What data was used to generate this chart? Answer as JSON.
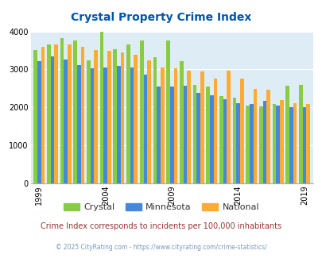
{
  "title": "Crystal Property Crime Index",
  "title_color": "#0055aa",
  "subtitle": "Crime Index corresponds to incidents per 100,000 inhabitants",
  "subtitle_color": "#993333",
  "footer": "© 2025 CityRating.com - https://www.cityrating.com/crime-statistics/",
  "footer_color": "#7799bb",
  "years": [
    1999,
    2000,
    2001,
    2002,
    2003,
    2004,
    2005,
    2006,
    2007,
    2008,
    2009,
    2010,
    2011,
    2012,
    2013,
    2014,
    2015,
    2016,
    2017,
    2018,
    2019
  ],
  "crystal": [
    3510,
    3650,
    3820,
    3760,
    3230,
    4000,
    3530,
    3650,
    3760,
    3330,
    3760,
    3220,
    2600,
    2560,
    2300,
    2260,
    2050,
    2020,
    2090,
    2580,
    2590
  ],
  "minnesota": [
    3210,
    3340,
    3270,
    3110,
    3030,
    3050,
    3100,
    3060,
    2860,
    2560,
    2540,
    2580,
    2390,
    2310,
    2210,
    2120,
    2100,
    2180,
    2040,
    2000,
    2000
  ],
  "national": [
    3600,
    3650,
    3650,
    3600,
    3520,
    3500,
    3450,
    3380,
    3240,
    3050,
    3040,
    2960,
    2950,
    2760,
    2960,
    2750,
    2490,
    2460,
    2200,
    2110,
    2090
  ],
  "crystal_color": "#88cc44",
  "minnesota_color": "#4488dd",
  "national_color": "#ffaa33",
  "plot_bg_color": "#deedf5",
  "ylim": [
    0,
    4000
  ],
  "yticks": [
    0,
    1000,
    2000,
    3000,
    4000
  ],
  "bar_width": 0.28,
  "xtick_years": [
    1999,
    2004,
    2009,
    2014,
    2019
  ]
}
